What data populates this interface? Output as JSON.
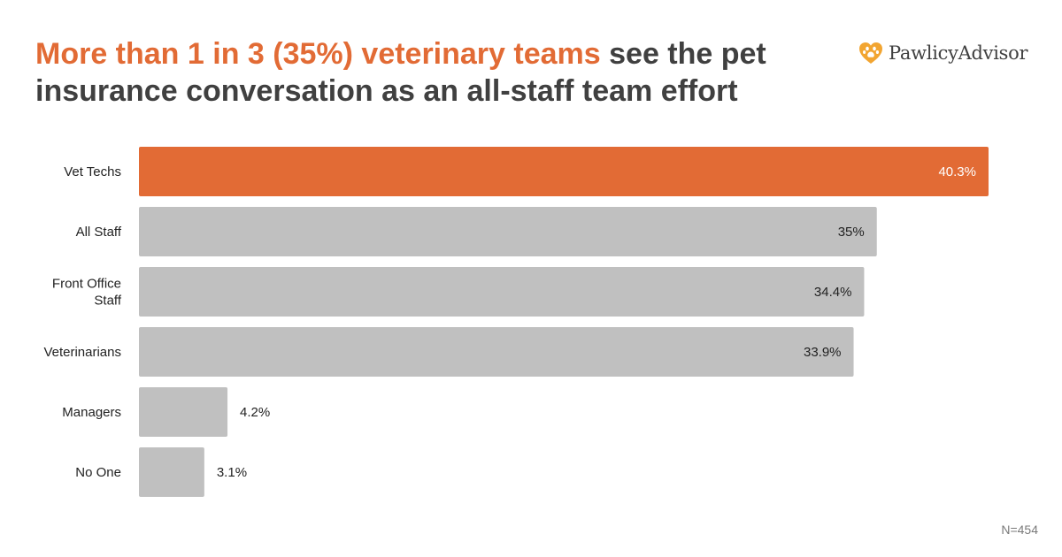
{
  "title": {
    "highlight": "More than 1 in 3 (35%) veterinary teams",
    "rest": " see the pet insurance conversation as an all-staff team effort"
  },
  "brand": {
    "name": "PawlicyAdvisor",
    "icon": "heart-paw-icon"
  },
  "colors": {
    "accent": "#e26b35",
    "bar": "#c0c0c0",
    "text": "#404040"
  },
  "footnote": "N=454",
  "chart_data": {
    "type": "bar",
    "orientation": "horizontal",
    "categories": [
      [
        "Vet Techs"
      ],
      [
        "All Staff"
      ],
      [
        "Front Office",
        "Staff"
      ],
      [
        "Veterinarians"
      ],
      [
        "Managers"
      ],
      [
        "No One"
      ]
    ],
    "values": [
      40.3,
      35,
      34.4,
      33.9,
      4.2,
      3.1
    ],
    "value_labels": [
      "40.3%",
      "35%",
      "34.4%",
      "33.9%",
      "4.2%",
      "3.1%"
    ],
    "highlight_index": 0,
    "xlim": [
      0,
      40.3
    ],
    "grid": false,
    "legend": "none"
  }
}
